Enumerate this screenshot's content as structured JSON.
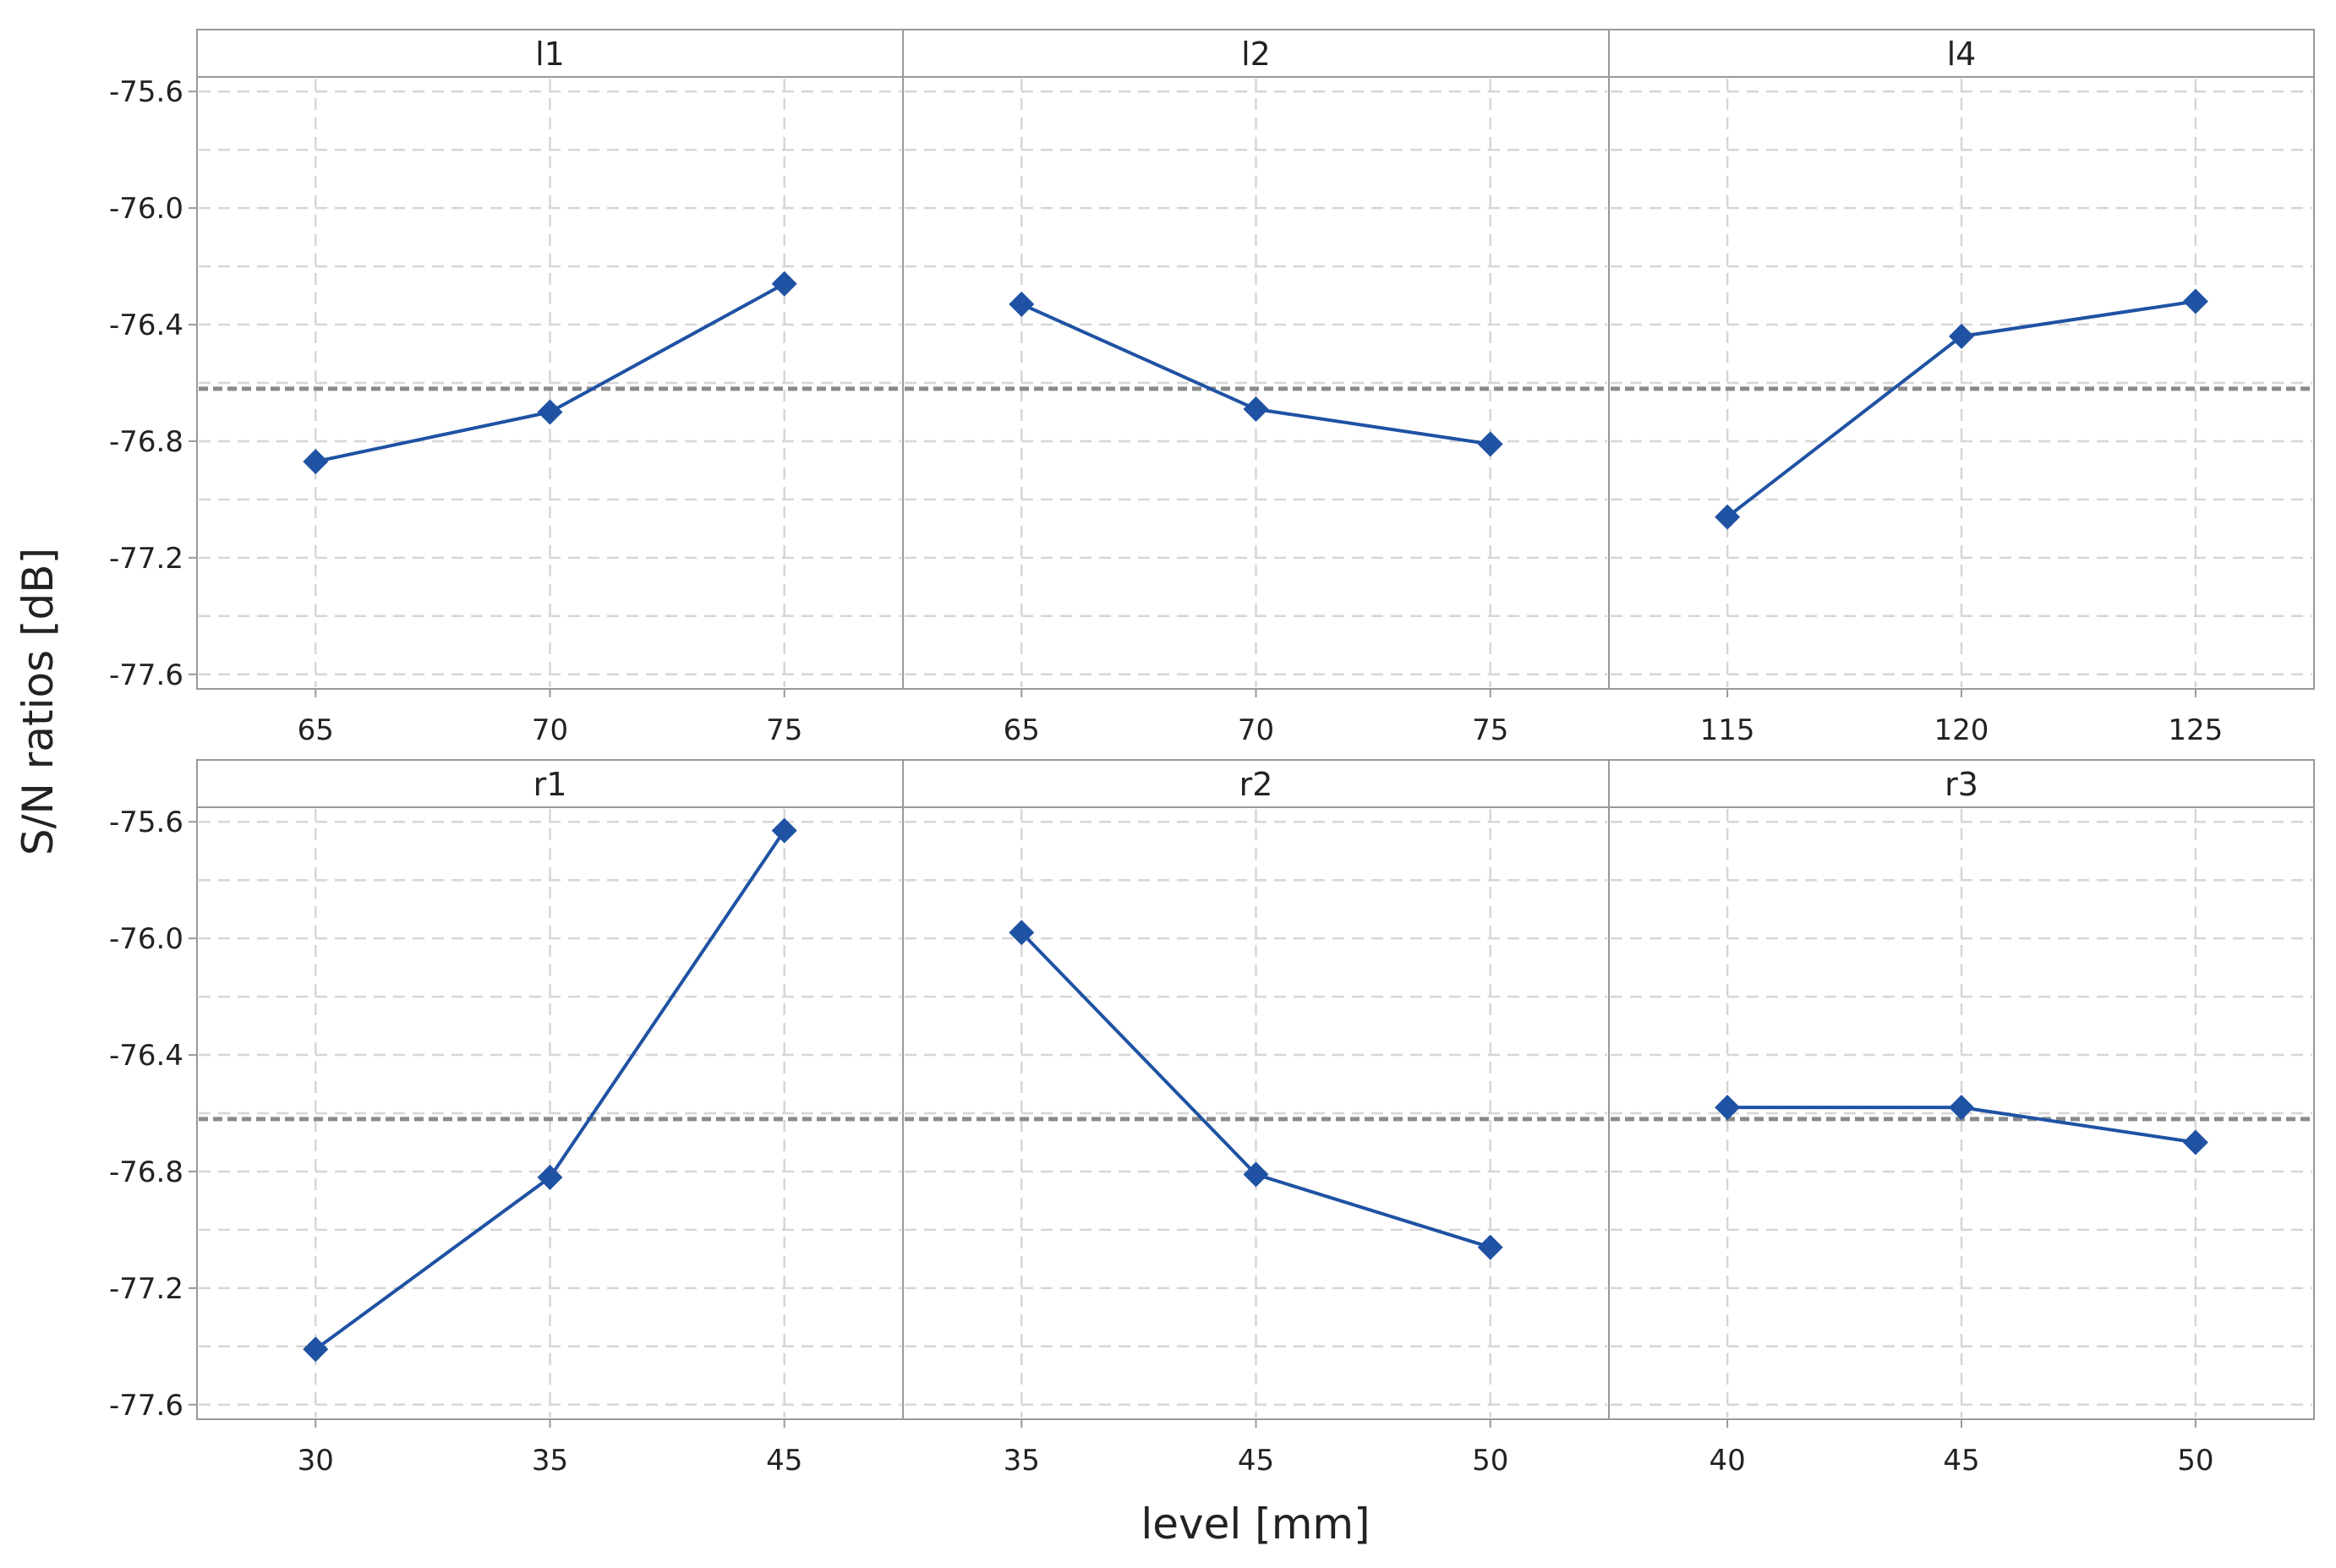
{
  "chart_data": {
    "type": "line",
    "layout": "2x3 panel grid, shared y axis per row",
    "ylabel": "S/N ratios [dB]",
    "xlabel": "level [mm]",
    "ylim": [
      -77.65,
      -75.55
    ],
    "yticks": [
      "-75.6",
      "-76.0",
      "-76.4",
      "-76.8",
      "-77.2",
      "-77.6"
    ],
    "ytick_values": [
      -75.6,
      -76.0,
      -76.4,
      -76.8,
      -77.2,
      -77.6
    ],
    "mean_line": -76.62,
    "grid": true,
    "colors": {
      "series": "#1f52a3",
      "mean": "#8a8a8a",
      "grid": "#d6d6d6",
      "frame": "#999999",
      "strip": "#ffffff"
    },
    "panels": [
      {
        "title": "l1",
        "categories": [
          "65",
          "70",
          "75"
        ],
        "values": [
          -76.87,
          -76.7,
          -76.26
        ]
      },
      {
        "title": "l2",
        "categories": [
          "65",
          "70",
          "75"
        ],
        "values": [
          -76.33,
          -76.69,
          -76.81
        ]
      },
      {
        "title": "l4",
        "categories": [
          "115",
          "120",
          "125"
        ],
        "values": [
          -77.06,
          -76.44,
          -76.32
        ]
      },
      {
        "title": "r1",
        "categories": [
          "30",
          "35",
          "45"
        ],
        "values": [
          -77.41,
          -76.82,
          -75.63
        ]
      },
      {
        "title": "r2",
        "categories": [
          "35",
          "45",
          "50"
        ],
        "values": [
          -75.98,
          -76.81,
          -77.06
        ]
      },
      {
        "title": "r3",
        "categories": [
          "40",
          "45",
          "50"
        ],
        "values": [
          -76.58,
          -76.58,
          -76.7
        ]
      }
    ]
  }
}
